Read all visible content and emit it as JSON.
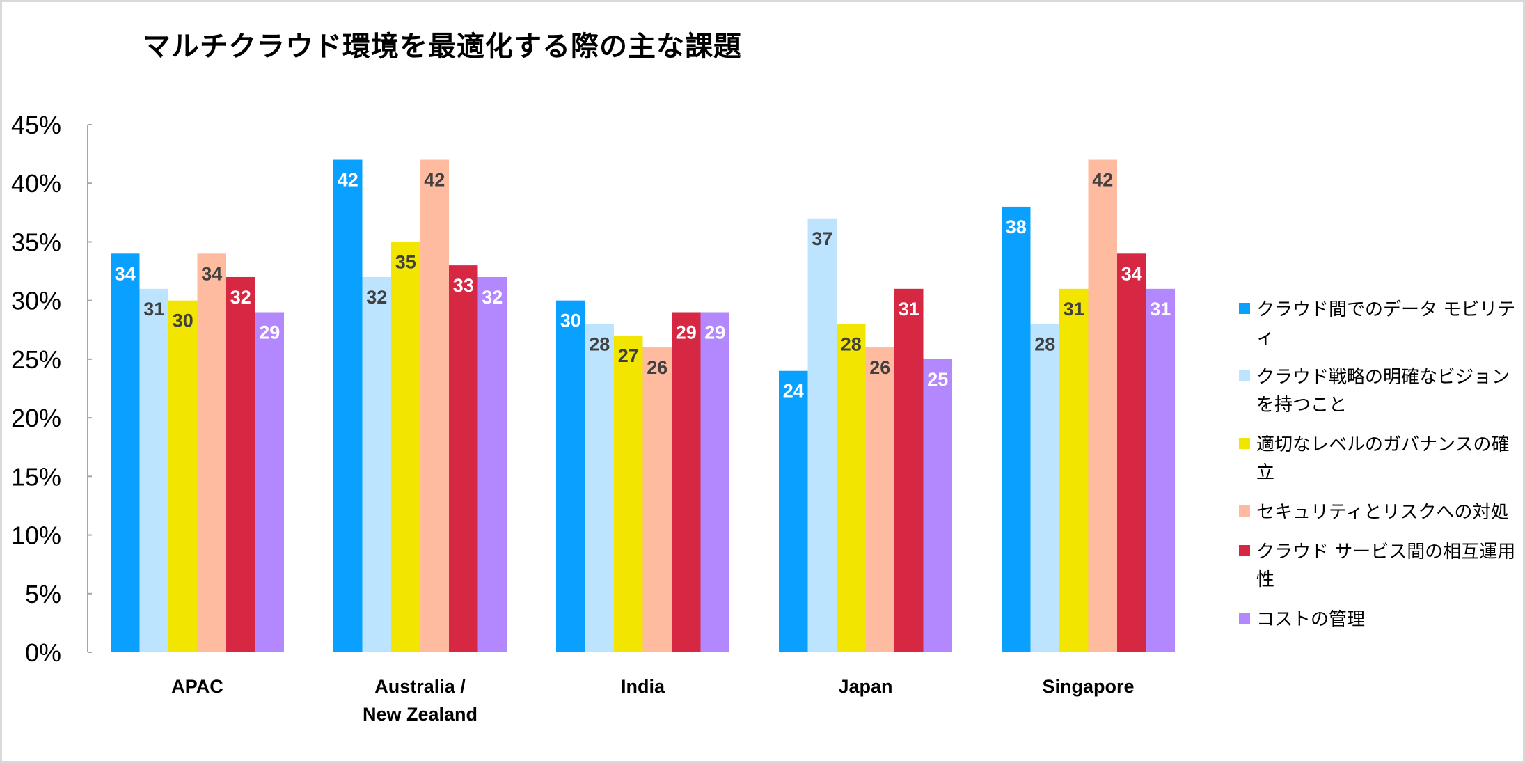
{
  "chart_data": {
    "type": "bar",
    "title": "マルチクラウド環境を最適化する際の主な課題",
    "categories": [
      "APAC",
      "Australia /\nNew Zealand",
      "India",
      "Japan",
      "Singapore"
    ],
    "ylim": [
      0,
      45
    ],
    "y_ticks": [
      "0%",
      "5%",
      "10%",
      "15%",
      "20%",
      "25%",
      "30%",
      "35%",
      "40%",
      "45%"
    ],
    "grid": false,
    "legend_position": "right",
    "series": [
      {
        "name": "クラウド間でのデータ モビリティ",
        "color": "#0AA0FF",
        "label_color": "#ffffff",
        "values": [
          34,
          42,
          30,
          24,
          38
        ]
      },
      {
        "name": "クラウド戦略の明確なビジョンを持つこと",
        "color": "#BDE4FF",
        "label_color": "#404040",
        "values": [
          31,
          32,
          28,
          37,
          28
        ]
      },
      {
        "name": "適切なレベルのガバナンスの確立",
        "color": "#F2E600",
        "label_color": "#404040",
        "values": [
          30,
          35,
          27,
          28,
          31
        ]
      },
      {
        "name": "セキュリティとリスクへの対処",
        "color": "#FFBBA0",
        "label_color": "#404040",
        "values": [
          34,
          42,
          26,
          26,
          42
        ]
      },
      {
        "name": "クラウド サービス間の相互運用性",
        "color": "#D62842",
        "label_color": "#ffffff",
        "values": [
          32,
          33,
          29,
          31,
          34
        ]
      },
      {
        "name": "コストの管理",
        "color": "#B388FF",
        "label_color": "#ffffff",
        "values": [
          29,
          32,
          29,
          25,
          31
        ]
      }
    ]
  }
}
